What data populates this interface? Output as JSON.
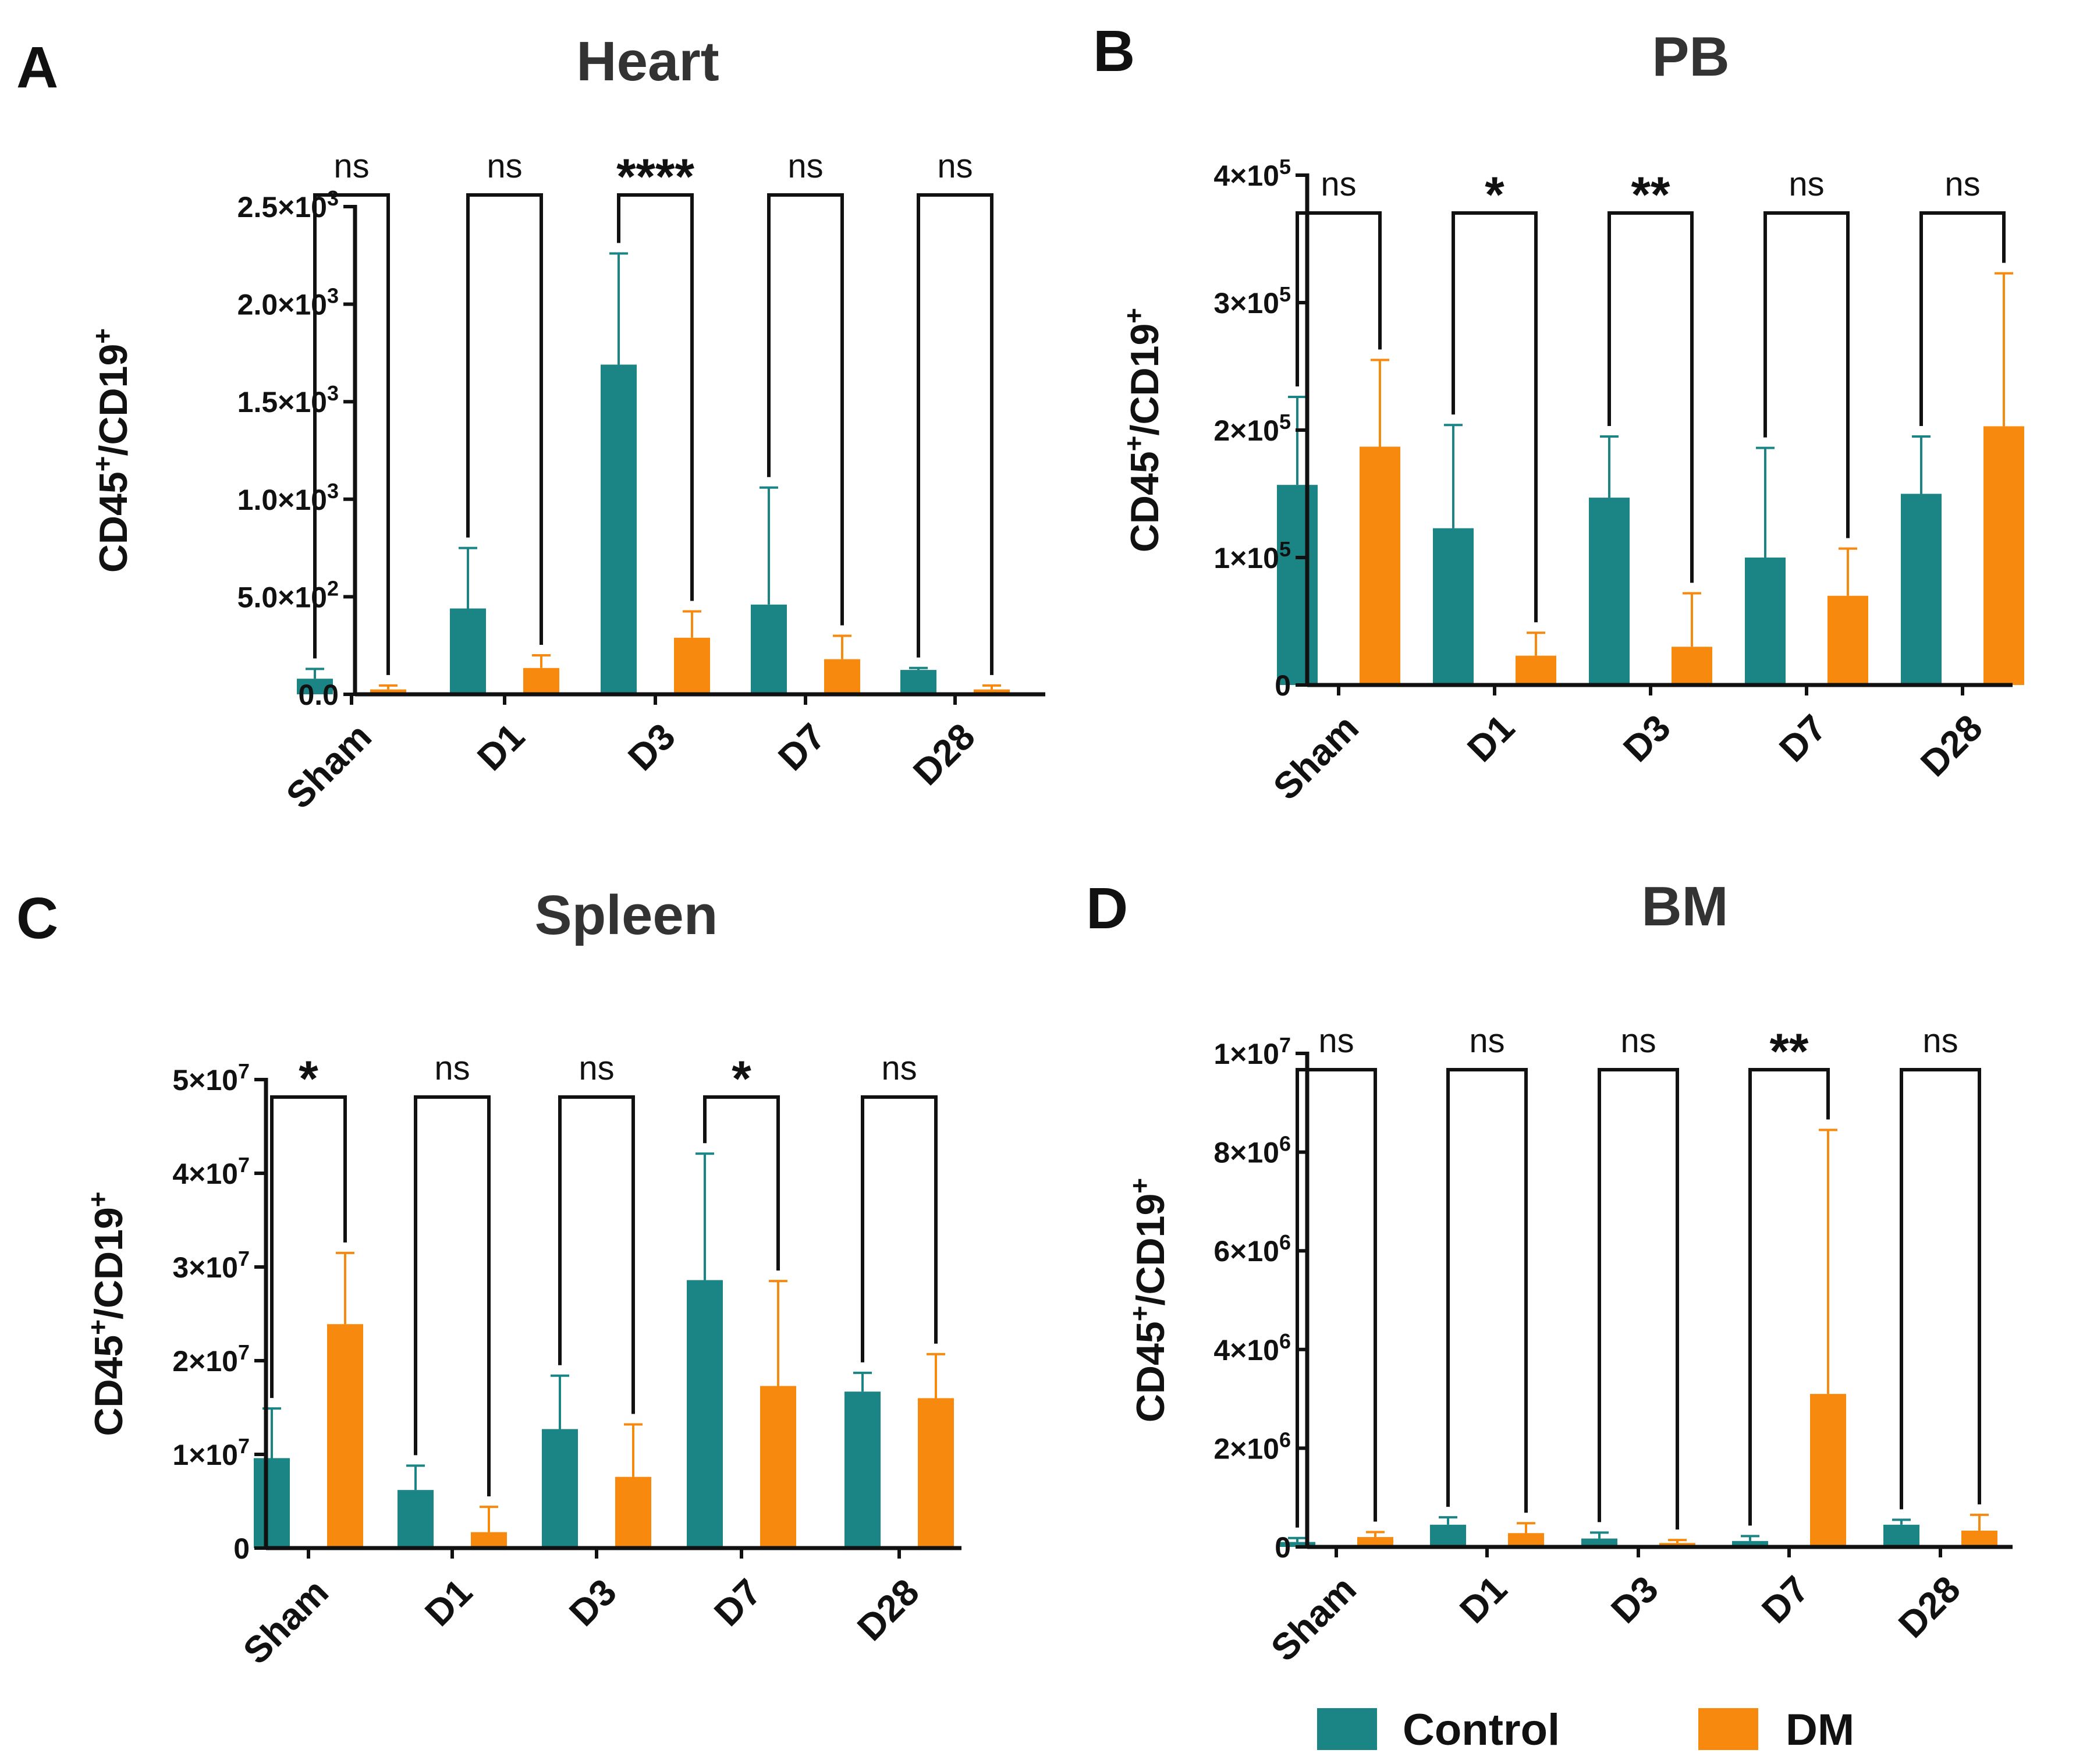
{
  "colors": {
    "Control": "#1b8585",
    "DM": "#f7890f",
    "axis": "#111111"
  },
  "legend": [
    {
      "name": "Control",
      "color": "#1b8585"
    },
    {
      "name": "DM",
      "color": "#f7890f"
    }
  ],
  "chart_data": [
    {
      "type": "bar",
      "panel": "A",
      "title": "Heart",
      "ylabel": "CD45+/CD19+",
      "ylabel_parts": {
        "base1": "CD45",
        "sup1": "+",
        "base2": "/CD19",
        "sup2": "+"
      },
      "ylim": [
        0,
        2500
      ],
      "yticks": [
        {
          "value": 0,
          "label": "0.0"
        },
        {
          "value": 500,
          "label": "5.0×10",
          "exp": "2"
        },
        {
          "value": 1000,
          "label": "1.0×10",
          "exp": "3"
        },
        {
          "value": 1500,
          "label": "1.5×10",
          "exp": "3"
        },
        {
          "value": 2000,
          "label": "2.0×10",
          "exp": "3"
        },
        {
          "value": 2500,
          "label": "2.5×10",
          "exp": "3"
        }
      ],
      "categories": [
        "Sham",
        "D1",
        "D3",
        "D7",
        "D28"
      ],
      "series": [
        {
          "name": "Control",
          "values": [
            80,
            440,
            1690,
            460,
            125
          ],
          "errors": [
            50,
            310,
            570,
            600,
            10
          ]
        },
        {
          "name": "DM",
          "values": [
            25,
            135,
            290,
            180,
            25
          ],
          "errors": [
            20,
            65,
            135,
            120,
            20
          ]
        }
      ],
      "significance": [
        "ns",
        "ns",
        "****",
        "ns",
        "ns"
      ]
    },
    {
      "type": "bar",
      "panel": "B",
      "title": "PB",
      "ylabel": "CD45+/CD19+",
      "ylabel_parts": {
        "base1": "CD45",
        "sup1": "+",
        "base2": "/CD19",
        "sup2": "+"
      },
      "ylim": [
        0,
        400000
      ],
      "yticks": [
        {
          "value": 0,
          "label": "0"
        },
        {
          "value": 100000,
          "label": "1×10",
          "exp": "5"
        },
        {
          "value": 200000,
          "label": "2×10",
          "exp": "5"
        },
        {
          "value": 300000,
          "label": "3×10",
          "exp": "5"
        },
        {
          "value": 400000,
          "label": "4×10",
          "exp": "5"
        }
      ],
      "categories": [
        "Sham",
        "D1",
        "D3",
        "D7",
        "D28"
      ],
      "series": [
        {
          "name": "Control",
          "values": [
            157000,
            123000,
            147000,
            100000,
            150000
          ],
          "errors": [
            69000,
            81000,
            48000,
            86000,
            45000
          ]
        },
        {
          "name": "DM",
          "values": [
            187000,
            23000,
            30000,
            70000,
            203000
          ],
          "errors": [
            68000,
            18000,
            42000,
            37000,
            120000
          ]
        }
      ],
      "significance": [
        "ns",
        "*",
        "**",
        "ns",
        "ns"
      ]
    },
    {
      "type": "bar",
      "panel": "C",
      "title": "Spleen",
      "ylabel": "CD45+/CD19+",
      "ylabel_parts": {
        "base1": "CD45",
        "sup1": "+",
        "base2": "/CD19",
        "sup2": "+"
      },
      "ylim": [
        0,
        50000000
      ],
      "yticks": [
        {
          "value": 0,
          "label": "0"
        },
        {
          "value": 10000000,
          "label": "1×10",
          "exp": "7"
        },
        {
          "value": 20000000,
          "label": "2×10",
          "exp": "7"
        },
        {
          "value": 30000000,
          "label": "3×10",
          "exp": "7"
        },
        {
          "value": 40000000,
          "label": "4×10",
          "exp": "7"
        },
        {
          "value": 50000000,
          "label": "5×10",
          "exp": "7"
        }
      ],
      "categories": [
        "Sham",
        "D1",
        "D3",
        "D7",
        "D28"
      ],
      "series": [
        {
          "name": "Control",
          "values": [
            9600000,
            6200000,
            12700000,
            28600000,
            16700000
          ],
          "errors": [
            5300000,
            2600000,
            5700000,
            13500000,
            2000000
          ]
        },
        {
          "name": "DM",
          "values": [
            23900000,
            1700000,
            7600000,
            17300000,
            16000000
          ],
          "errors": [
            7600000,
            2700000,
            5600000,
            11200000,
            4700000
          ]
        }
      ],
      "significance": [
        "*",
        "ns",
        "ns",
        "*",
        "ns"
      ]
    },
    {
      "type": "bar",
      "panel": "D",
      "title": "BM",
      "ylabel": "CD45+/CD19+",
      "ylabel_parts": {
        "base1": "CD45",
        "sup1": "+",
        "base2": "/CD19",
        "sup2": "+"
      },
      "ylim": [
        0,
        10000000
      ],
      "yticks": [
        {
          "value": 0,
          "label": "0"
        },
        {
          "value": 2000000,
          "label": "2×10",
          "exp": "6"
        },
        {
          "value": 4000000,
          "label": "4×10",
          "exp": "6"
        },
        {
          "value": 6000000,
          "label": "6×10",
          "exp": "6"
        },
        {
          "value": 8000000,
          "label": "8×10",
          "exp": "6"
        },
        {
          "value": 10000000,
          "label": "1×10",
          "exp": "7"
        }
      ],
      "categories": [
        "Sham",
        "D1",
        "D3",
        "D7",
        "D28"
      ],
      "series": [
        {
          "name": "Control",
          "values": [
            100000,
            450000,
            170000,
            120000,
            450000
          ],
          "errors": [
            80000,
            150000,
            120000,
            100000,
            100000
          ]
        },
        {
          "name": "DM",
          "values": [
            200000,
            280000,
            80000,
            3100000,
            330000
          ],
          "errors": [
            100000,
            200000,
            60000,
            5350000,
            320000
          ]
        }
      ],
      "significance": [
        "ns",
        "ns",
        "ns",
        "**",
        "ns"
      ]
    }
  ]
}
